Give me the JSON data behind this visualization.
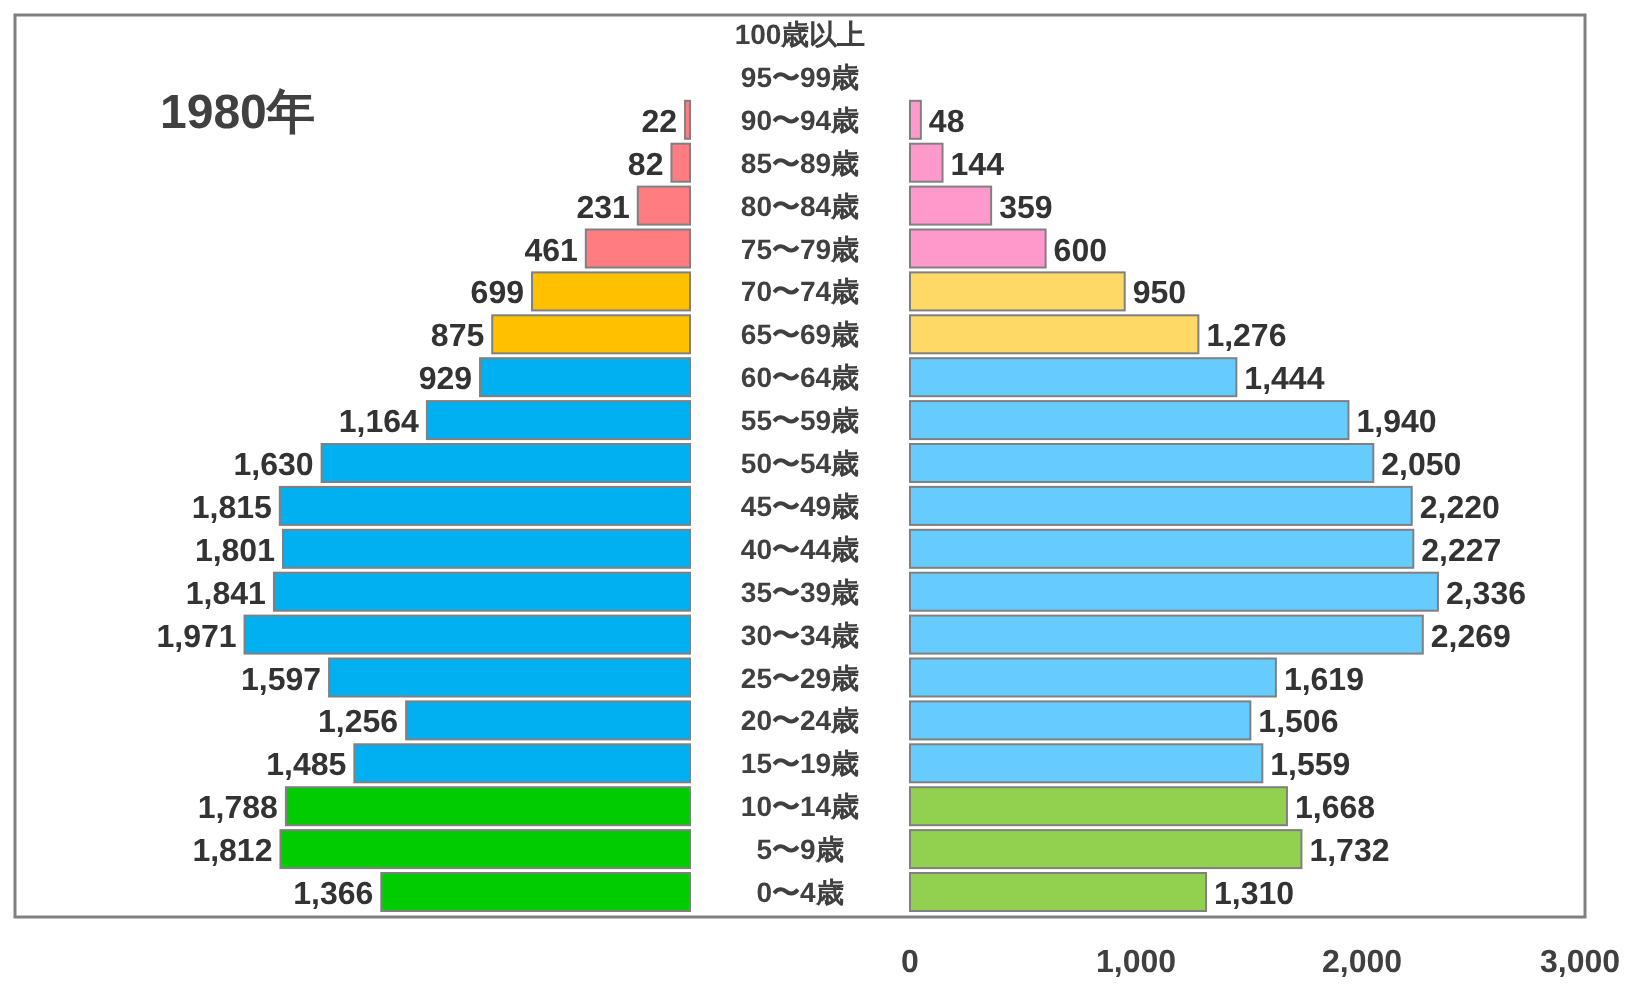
{
  "chart_data": [
    {
      "type": "bar",
      "orientation": "horizontal",
      "title": "1980年",
      "tick_labels": "y",
      "xlim": [
        3000,
        0
      ],
      "categories": [
        "100歳以上",
        "95〜99歳",
        "90〜94歳",
        "85〜89歳",
        "80〜84歳",
        "75〜79歳",
        "70〜74歳",
        "65〜69歳",
        "60〜64歳",
        "55〜59歳",
        "50〜54歳",
        "45〜49歳",
        "40〜44歳",
        "35〜39歳",
        "30〜34歳",
        "25〜29歳",
        "20〜24歳",
        "15〜19歳",
        "10〜14歳",
        "5〜9歳",
        "0〜4歳"
      ],
      "series": [
        {
          "values": [
            null,
            null,
            22,
            82,
            231,
            461,
            699,
            875,
            929,
            1164,
            1630,
            1815,
            1801,
            1841,
            1971,
            1597,
            1256,
            1485,
            1788,
            1812,
            1366
          ],
          "value_labels": [
            null,
            null,
            "22",
            "82",
            "231",
            "461",
            "699",
            "875",
            "929",
            "1,164",
            "1,630",
            "1,815",
            "1,801",
            "1,841",
            "1,971",
            "1,597",
            "1,256",
            "1,485",
            "1,788",
            "1,812",
            "1,366"
          ],
          "colors": [
            "#ff7c80",
            "#ff7c80",
            "#ff7c80",
            "#ff7c80",
            "#ff7c80",
            "#ff7c80",
            "#ffc000",
            "#ffc000",
            "#00b0f0",
            "#00b0f0",
            "#00b0f0",
            "#00b0f0",
            "#00b0f0",
            "#00b0f0",
            "#00b0f0",
            "#00b0f0",
            "#00b0f0",
            "#00b0f0",
            "#00cc00",
            "#00cc00",
            "#00cc00"
          ]
        }
      ]
    },
    {
      "type": "bar",
      "orientation": "horizontal",
      "tick_labels": "x",
      "xlim": [
        0,
        3000
      ],
      "xticks": [
        {
          "value": 0,
          "label": "0"
        },
        {
          "value": 1000,
          "label": "1,000"
        },
        {
          "value": 2000,
          "label": "2,000"
        },
        {
          "value": 3000,
          "label": "3,000"
        }
      ],
      "categories": [
        null,
        null,
        null,
        null,
        null,
        null,
        null,
        null,
        null,
        null,
        null,
        null,
        null,
        null,
        null,
        null,
        null,
        null,
        null,
        null,
        null
      ],
      "series": [
        {
          "values": [
            null,
            null,
            48,
            144,
            359,
            600,
            950,
            1276,
            1444,
            1940,
            2050,
            2220,
            2227,
            2336,
            2269,
            1619,
            1506,
            1559,
            1668,
            1732,
            1310
          ],
          "value_labels": [
            null,
            null,
            "48",
            "144",
            "359",
            "600",
            "950",
            "1,276",
            "1,444",
            "1,940",
            "2,050",
            "2,220",
            "2,227",
            "2,336",
            "2,269",
            "1,619",
            "1,506",
            "1,559",
            "1,668",
            "1,732",
            "1,310"
          ],
          "colors": [
            "#ff99cc",
            "#ff99cc",
            "#ff99cc",
            "#ff99cc",
            "#ff99cc",
            "#ff99cc",
            "#ffd966",
            "#ffd966",
            "#66ccff",
            "#66ccff",
            "#66ccff",
            "#66ccff",
            "#66ccff",
            "#66ccff",
            "#66ccff",
            "#66ccff",
            "#66ccff",
            "#66ccff",
            "#92d050",
            "#92d050",
            "#92d050"
          ]
        }
      ]
    }
  ]
}
